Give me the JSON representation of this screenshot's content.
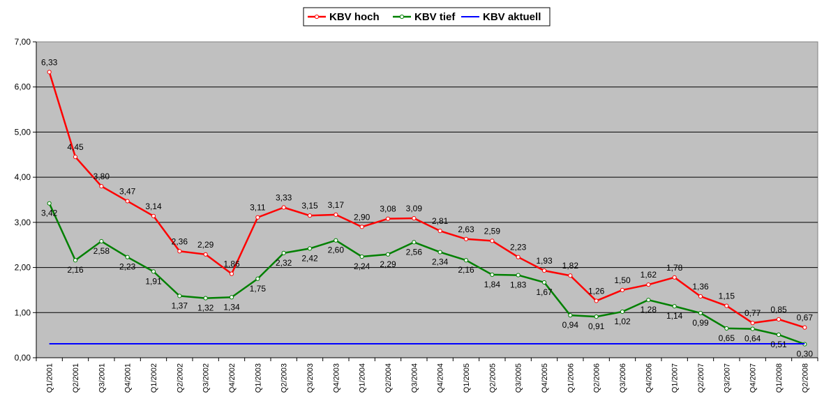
{
  "chart_data": {
    "type": "line",
    "title": "",
    "xlabel": "",
    "ylabel": "",
    "ylim": [
      0,
      7
    ],
    "y_ticks": [
      "0,00",
      "1,00",
      "2,00",
      "3,00",
      "4,00",
      "5,00",
      "6,00",
      "7,00"
    ],
    "grid": true,
    "legend_position": "top-center",
    "categories": [
      "Q1/2001",
      "Q2/2001",
      "Q3/2001",
      "Q4/2001",
      "Q1/2002",
      "Q2/2002",
      "Q3/2002",
      "Q4/2002",
      "Q1/2003",
      "Q2/2003",
      "Q3/2003",
      "Q4/2003",
      "Q1/2004",
      "Q2/2004",
      "Q3/2004",
      "Q4/2004",
      "Q1/2005",
      "Q2/2005",
      "Q3/2005",
      "Q4/2005",
      "Q1/2006",
      "Q2/2006",
      "Q3/2006",
      "Q4/2006",
      "Q1/2007",
      "Q2/2007",
      "Q3/2007",
      "Q4/2007",
      "Q1/2008",
      "Q2/2008"
    ],
    "series": [
      {
        "name": "KBV hoch",
        "color": "#ff0000",
        "label_position": "above",
        "values": [
          6.33,
          4.45,
          3.8,
          3.47,
          3.14,
          2.36,
          2.29,
          1.86,
          3.11,
          3.33,
          3.15,
          3.17,
          2.9,
          3.08,
          3.09,
          2.81,
          2.63,
          2.59,
          2.23,
          1.93,
          1.82,
          1.26,
          1.5,
          1.62,
          1.78,
          1.36,
          1.15,
          0.77,
          0.85,
          0.67
        ],
        "labels": [
          "6,33",
          "4,45",
          "3,80",
          "3,47",
          "3,14",
          "2,36",
          "2,29",
          "1,86",
          "3,11",
          "3,33",
          "3,15",
          "3,17",
          "2,90",
          "3,08",
          "3,09",
          "2,81",
          "2,63",
          "2,59",
          "2,23",
          "1,93",
          "1,82",
          "1,26",
          "1,50",
          "1,62",
          "1,78",
          "1,36",
          "1,15",
          "0,77",
          "0,85",
          "0,67"
        ]
      },
      {
        "name": "KBV tief",
        "color": "#008000",
        "label_position": "below",
        "values": [
          3.42,
          2.16,
          2.58,
          2.23,
          1.91,
          1.37,
          1.32,
          1.34,
          1.75,
          2.32,
          2.42,
          2.6,
          2.24,
          2.29,
          2.56,
          2.34,
          2.16,
          1.84,
          1.83,
          1.67,
          0.94,
          0.91,
          1.02,
          1.28,
          1.14,
          0.99,
          0.65,
          0.64,
          0.51,
          0.3
        ],
        "labels": [
          "3,42",
          "2,16",
          "2,58",
          "2,23",
          "1,91",
          "1,37",
          "1,32",
          "1,34",
          "1,75",
          "2,32",
          "2,42",
          "2,60",
          "2,24",
          "2,29",
          "2,56",
          "2,34",
          "2,16",
          "1,84",
          "1,83",
          "1,67",
          "0,94",
          "0,91",
          "1,02",
          "1,28",
          "1,14",
          "0,99",
          "0,65",
          "0,64",
          "0,51",
          "0,30"
        ]
      },
      {
        "name": "KBV aktuell",
        "color": "#0000ff",
        "label_position": "none",
        "values": [
          0.31,
          0.31,
          0.31,
          0.31,
          0.31,
          0.31,
          0.31,
          0.31,
          0.31,
          0.31,
          0.31,
          0.31,
          0.31,
          0.31,
          0.31,
          0.31,
          0.31,
          0.31,
          0.31,
          0.31,
          0.31,
          0.31,
          0.31,
          0.31,
          0.31,
          0.31,
          0.31,
          0.31,
          0.31,
          0.31
        ]
      }
    ]
  },
  "colors": {
    "plot_background": "#c0c0c0",
    "gridline": "#000000",
    "chart_background": "#ffffff"
  }
}
